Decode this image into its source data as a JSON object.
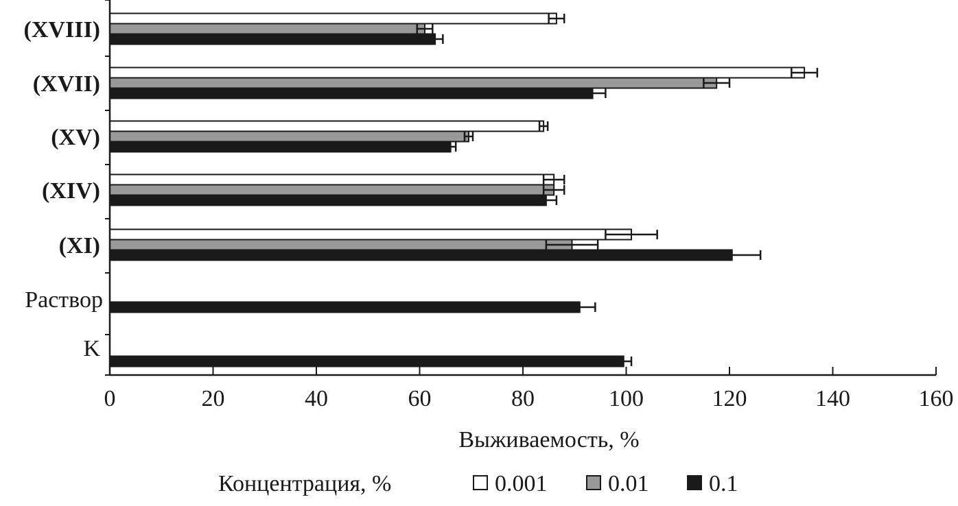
{
  "chart_data": {
    "type": "bar",
    "orientation": "horizontal",
    "categories": [
      "(XVIII)",
      "(XVII)",
      "(XV)",
      "(XIV)",
      "(XI)",
      "Раствор",
      "K"
    ],
    "series": [
      {
        "name": "0.001",
        "color": "#ffffff",
        "values": [
          86.5,
          134.5,
          84,
          86,
          101,
          null,
          null
        ],
        "errors": [
          1.5,
          2.5,
          0.8,
          2,
          5,
          null,
          null
        ]
      },
      {
        "name": "0.01",
        "color": "#999999",
        "values": [
          61,
          117.5,
          69.5,
          86,
          89.5,
          null,
          null
        ],
        "errors": [
          1.5,
          2.5,
          0.8,
          2,
          5,
          null,
          null
        ]
      },
      {
        "name": "0.1",
        "color": "#1a1a1a",
        "values": [
          63,
          93.5,
          66,
          84.5,
          120.5,
          91,
          99.5
        ],
        "errors": [
          1.5,
          2.5,
          1,
          2,
          5.5,
          3,
          1.5
        ]
      }
    ],
    "xlabel": "Выживаемость, %",
    "ylabel": "",
    "xlim": [
      0,
      160
    ],
    "xticks": [
      0,
      20,
      40,
      60,
      80,
      100,
      120,
      140,
      160
    ],
    "grid": false,
    "legend": {
      "title": "Концентрация, %",
      "position": "bottom",
      "entries": [
        "0.001",
        "0.01",
        "0.1"
      ]
    }
  }
}
